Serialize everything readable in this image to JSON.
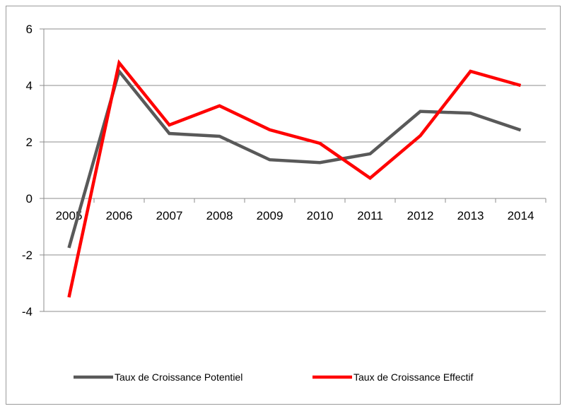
{
  "chart_data": {
    "type": "line",
    "categories": [
      "2005",
      "2006",
      "2007",
      "2008",
      "2009",
      "2010",
      "2011",
      "2012",
      "2013",
      "2014"
    ],
    "series": [
      {
        "name": "Taux de Croissance Potentiel",
        "color": "#595959",
        "values": [
          -1.75,
          4.5,
          2.3,
          2.2,
          1.37,
          1.27,
          1.58,
          3.08,
          3.02,
          2.42
        ]
      },
      {
        "name": "Taux de Croissance Effectif",
        "color": "#ff0000",
        "values": [
          -3.5,
          4.8,
          2.6,
          3.28,
          2.43,
          1.95,
          0.72,
          2.22,
          4.5,
          4.0
        ]
      }
    ],
    "yticks": [
      "6",
      "4",
      "2",
      "0",
      "-2",
      "-4"
    ],
    "ylim": [
      -4,
      6
    ],
    "grid": true,
    "legend_position": "bottom"
  }
}
